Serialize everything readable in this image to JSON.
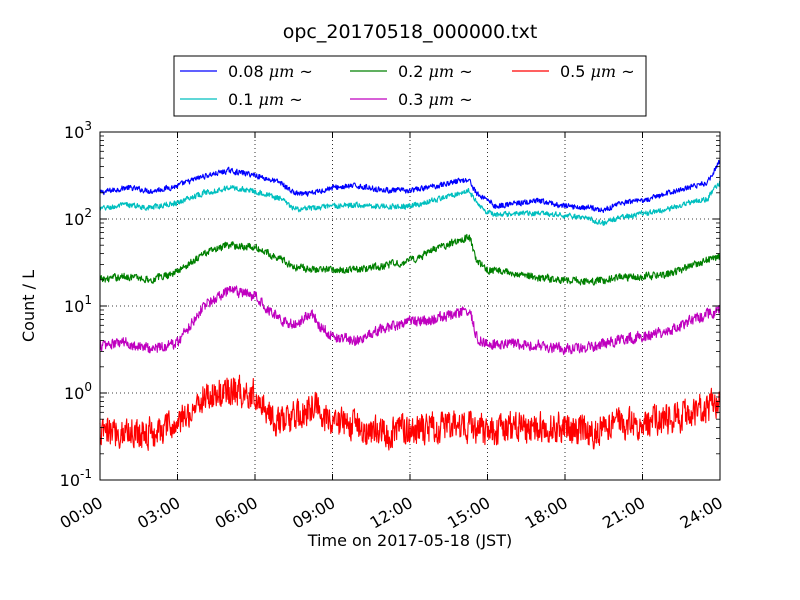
{
  "chart_data": {
    "type": "line",
    "title": "opc_20170518_000000.txt",
    "xlabel": "Time on 2017-05-18 (JST)",
    "ylabel": "Count / L",
    "y_scale": "log",
    "xlim_hours": [
      0,
      24
    ],
    "ylim": [
      0.1,
      1000
    ],
    "grid": true,
    "legend_position": "top-center",
    "x_ticks": [
      {
        "hour": 0,
        "label": "00:00"
      },
      {
        "hour": 3,
        "label": "03:00"
      },
      {
        "hour": 6,
        "label": "06:00"
      },
      {
        "hour": 9,
        "label": "09:00"
      },
      {
        "hour": 12,
        "label": "12:00"
      },
      {
        "hour": 15,
        "label": "15:00"
      },
      {
        "hour": 18,
        "label": "18:00"
      },
      {
        "hour": 21,
        "label": "21:00"
      },
      {
        "hour": 24,
        "label": "24:00"
      }
    ],
    "y_ticks": [
      {
        "value": 0.1,
        "base": "10",
        "exp": "-1"
      },
      {
        "value": 1,
        "base": "10",
        "exp": "0"
      },
      {
        "value": 10,
        "base": "10",
        "exp": "1"
      },
      {
        "value": 100,
        "base": "10",
        "exp": "2"
      },
      {
        "value": 1000,
        "base": "10",
        "exp": "3"
      }
    ],
    "series": [
      {
        "name": "0.08 μm ~",
        "label_prefix": "0.08 ",
        "label_unit": "μm",
        "label_suffix": " ~",
        "color": "#0000ff",
        "noise": 0.03,
        "points": [
          [
            0,
            200
          ],
          [
            1,
            230
          ],
          [
            2,
            210
          ],
          [
            3,
            240
          ],
          [
            4,
            310
          ],
          [
            5,
            360
          ],
          [
            6,
            320
          ],
          [
            7,
            260
          ],
          [
            7.5,
            200
          ],
          [
            8,
            190
          ],
          [
            9,
            230
          ],
          [
            10,
            240
          ],
          [
            11,
            215
          ],
          [
            12,
            210
          ],
          [
            13,
            240
          ],
          [
            14,
            280
          ],
          [
            14.3,
            280
          ],
          [
            14.6,
            190
          ],
          [
            15,
            170
          ],
          [
            15.3,
            140
          ],
          [
            16,
            150
          ],
          [
            17,
            160
          ],
          [
            18,
            140
          ],
          [
            19,
            135
          ],
          [
            19.5,
            125
          ],
          [
            20,
            150
          ],
          [
            21,
            160
          ],
          [
            22,
            200
          ],
          [
            23,
            240
          ],
          [
            23.5,
            260
          ],
          [
            24,
            470
          ]
        ]
      },
      {
        "name": "0.1 μm ~",
        "label_prefix": "0.1 ",
        "label_unit": "μm",
        "label_suffix": " ~",
        "color": "#00bfbf",
        "noise": 0.03,
        "points": [
          [
            0,
            130
          ],
          [
            1,
            145
          ],
          [
            2,
            135
          ],
          [
            3,
            155
          ],
          [
            4,
            200
          ],
          [
            5,
            230
          ],
          [
            6,
            210
          ],
          [
            7,
            170
          ],
          [
            7.5,
            130
          ],
          [
            8,
            130
          ],
          [
            9,
            140
          ],
          [
            10,
            145
          ],
          [
            11,
            140
          ],
          [
            12,
            140
          ],
          [
            13,
            165
          ],
          [
            14,
            205
          ],
          [
            14.3,
            210
          ],
          [
            14.6,
            150
          ],
          [
            15,
            120
          ],
          [
            15.3,
            110
          ],
          [
            16,
            115
          ],
          [
            17,
            115
          ],
          [
            18,
            110
          ],
          [
            19,
            100
          ],
          [
            19.5,
            90
          ],
          [
            20,
            100
          ],
          [
            21,
            115
          ],
          [
            22,
            130
          ],
          [
            23,
            160
          ],
          [
            23.5,
            170
          ],
          [
            24,
            260
          ]
        ]
      },
      {
        "name": "0.2 μm ~",
        "label_prefix": "0.2 ",
        "label_unit": "μm",
        "label_suffix": " ~",
        "color": "#008000",
        "noise": 0.04,
        "points": [
          [
            0,
            20
          ],
          [
            1,
            22
          ],
          [
            2,
            20
          ],
          [
            3,
            25
          ],
          [
            4,
            40
          ],
          [
            5,
            50
          ],
          [
            6,
            47
          ],
          [
            7,
            35
          ],
          [
            7.5,
            28
          ],
          [
            8,
            27
          ],
          [
            9,
            26
          ],
          [
            10,
            26
          ],
          [
            11,
            29
          ],
          [
            12,
            33
          ],
          [
            13,
            45
          ],
          [
            14,
            58
          ],
          [
            14.3,
            62
          ],
          [
            14.6,
            32
          ],
          [
            15,
            26
          ],
          [
            16,
            24
          ],
          [
            17,
            21
          ],
          [
            18,
            20
          ],
          [
            19,
            19
          ],
          [
            20,
            21
          ],
          [
            21,
            22
          ],
          [
            22,
            23
          ],
          [
            23,
            30
          ],
          [
            24,
            37
          ]
        ]
      },
      {
        "name": "0.3 μm ~",
        "label_prefix": "0.3 ",
        "label_unit": "μm",
        "label_suffix": " ~",
        "color": "#bf00bf",
        "noise": 0.06,
        "points": [
          [
            0,
            3.5
          ],
          [
            1,
            3.8
          ],
          [
            2,
            3.2
          ],
          [
            3,
            3.8
          ],
          [
            4,
            10
          ],
          [
            5,
            15
          ],
          [
            6,
            13
          ],
          [
            7,
            7
          ],
          [
            7.5,
            6
          ],
          [
            8.2,
            8.5
          ],
          [
            8.5,
            6
          ],
          [
            9,
            4.5
          ],
          [
            10,
            4
          ],
          [
            11,
            5.5
          ],
          [
            12,
            6.5
          ],
          [
            13,
            7
          ],
          [
            14,
            8.5
          ],
          [
            14.3,
            9
          ],
          [
            14.6,
            4.2
          ],
          [
            15,
            3.8
          ],
          [
            16,
            3.6
          ],
          [
            17,
            3.6
          ],
          [
            18,
            3.2
          ],
          [
            19,
            3.4
          ],
          [
            20,
            4
          ],
          [
            21,
            4.5
          ],
          [
            22,
            5
          ],
          [
            23,
            7
          ],
          [
            24,
            9
          ]
        ]
      },
      {
        "name": "0.5 μm ~",
        "label_prefix": "0.5 ",
        "label_unit": "μm",
        "label_suffix": " ~",
        "color": "#ff0000",
        "noise": 0.17,
        "points": [
          [
            0,
            0.33
          ],
          [
            1,
            0.37
          ],
          [
            2,
            0.35
          ],
          [
            3,
            0.42
          ],
          [
            4,
            0.9
          ],
          [
            5,
            1.05
          ],
          [
            6,
            1.0
          ],
          [
            6.5,
            0.6
          ],
          [
            7,
            0.45
          ],
          [
            7.5,
            0.5
          ],
          [
            8,
            0.6
          ],
          [
            8.3,
            0.8
          ],
          [
            8.7,
            0.5
          ],
          [
            9,
            0.45
          ],
          [
            10,
            0.42
          ],
          [
            11,
            0.35
          ],
          [
            12,
            0.38
          ],
          [
            13,
            0.4
          ],
          [
            14,
            0.42
          ],
          [
            15,
            0.37
          ],
          [
            16,
            0.4
          ],
          [
            17,
            0.42
          ],
          [
            18,
            0.4
          ],
          [
            19,
            0.36
          ],
          [
            20,
            0.42
          ],
          [
            21,
            0.45
          ],
          [
            22,
            0.5
          ],
          [
            23,
            0.6
          ],
          [
            24,
            0.75
          ]
        ]
      }
    ]
  }
}
